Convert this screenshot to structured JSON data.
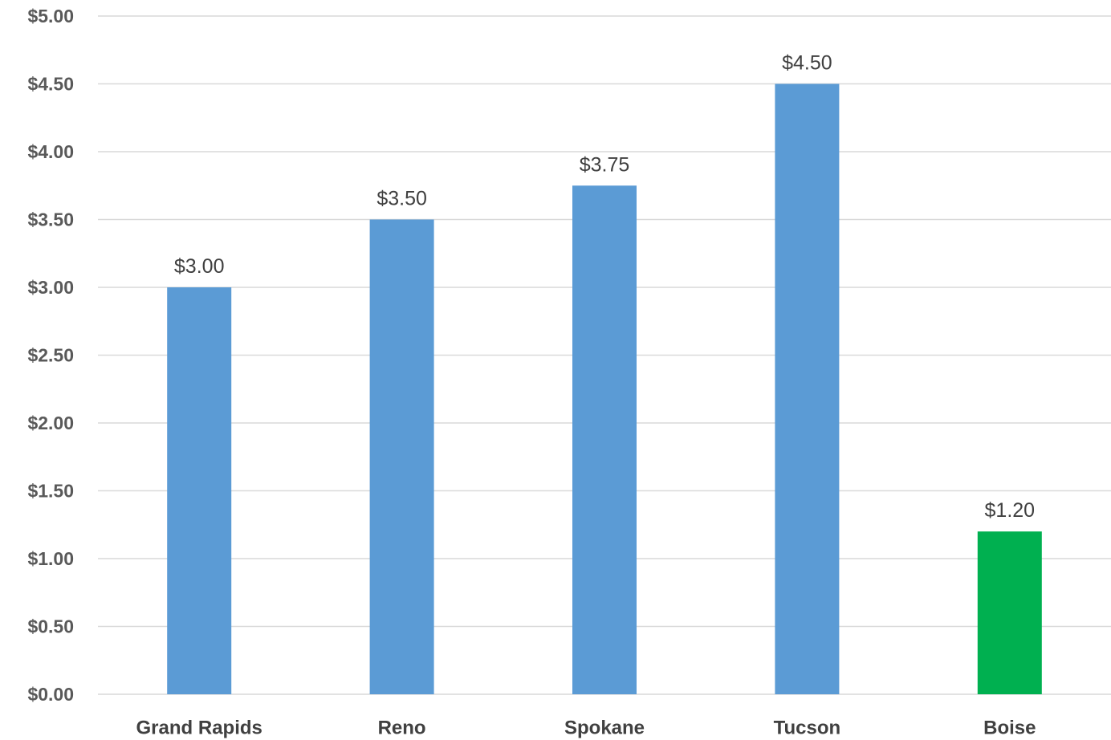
{
  "chart_data": {
    "type": "bar",
    "title": "",
    "xlabel": "",
    "ylabel": "",
    "categories": [
      "Grand Rapids",
      "Reno",
      "Spokane",
      "Tucson",
      "Boise"
    ],
    "values": [
      3.0,
      3.5,
      3.75,
      4.5,
      1.2
    ],
    "data_labels": [
      "$3.00",
      "$3.50",
      "$3.75",
      "$4.50",
      "$1.20"
    ],
    "bar_colors": [
      "#5b9bd5",
      "#5b9bd5",
      "#5b9bd5",
      "#5b9bd5",
      "#00b050"
    ],
    "ylim": [
      0,
      5
    ],
    "yticks": [
      0,
      0.5,
      1,
      1.5,
      2,
      2.5,
      3,
      3.5,
      4,
      4.5,
      5
    ],
    "ytick_labels": [
      "$0.00",
      "$0.50",
      "$1.00",
      "$1.50",
      "$2.00",
      "$2.50",
      "$3.00",
      "$3.50",
      "$4.00",
      "$4.50",
      "$5.00"
    ],
    "grid": true,
    "legend": "none"
  }
}
